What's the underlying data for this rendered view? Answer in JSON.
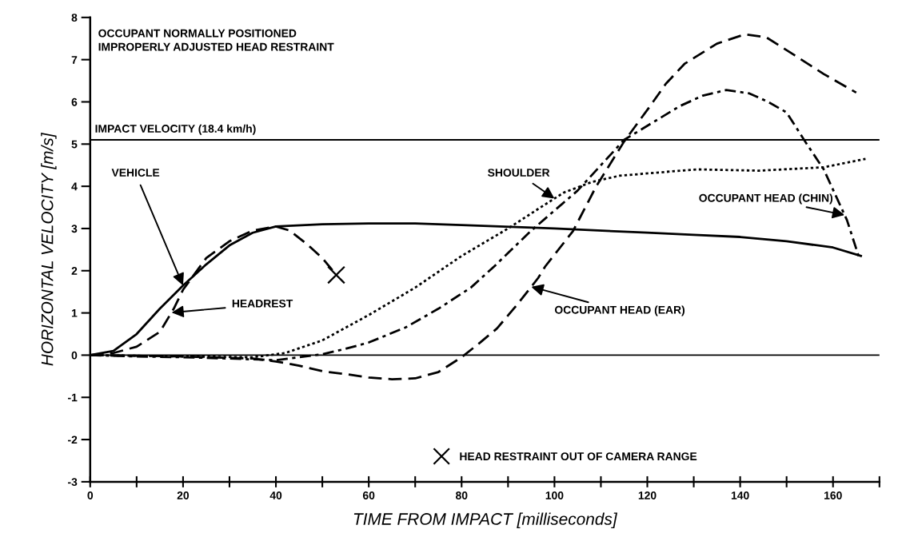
{
  "chart_data": {
    "type": "line",
    "xlabel": "TIME FROM IMPACT [milliseconds]",
    "ylabel": "HORIZONTAL VELOCITY [m/s]",
    "xlim": [
      0,
      170
    ],
    "xticks": [
      0,
      {
        "value": 10,
        "label": null
      },
      20,
      {
        "value": 30,
        "label": null
      },
      40,
      {
        "value": 50,
        "label": null
      },
      60,
      {
        "value": 70,
        "label": null
      },
      80,
      {
        "value": 90,
        "label": null
      },
      100,
      {
        "value": 110,
        "label": null
      },
      120,
      {
        "value": 130,
        "label": null
      },
      140,
      {
        "value": 150,
        "label": null
      },
      160,
      {
        "value": 170,
        "label": null
      }
    ],
    "ylim": [
      -3,
      8
    ],
    "yticks": [
      -3,
      -2,
      -1,
      0,
      1,
      2,
      3,
      4,
      5,
      6,
      7,
      8
    ],
    "grid": false,
    "legend": "bottom",
    "series": [
      {
        "name": "VEHICLE",
        "color": "#000000",
        "line_style": "solid",
        "x": [
          0,
          5,
          10,
          15,
          20,
          25,
          30,
          35,
          40,
          50,
          60,
          70,
          80,
          100,
          120,
          130,
          140,
          150,
          160,
          166
        ],
        "values": [
          0,
          0.1,
          0.5,
          1.1,
          1.65,
          2.15,
          2.6,
          2.9,
          3.05,
          3.1,
          3.12,
          3.12,
          3.08,
          3.0,
          2.9,
          2.85,
          2.8,
          2.7,
          2.55,
          2.35
        ]
      },
      {
        "name": "HEADREST",
        "color": "#000000",
        "line_style": "dashed",
        "x": [
          0,
          5,
          10,
          15,
          18,
          20,
          25,
          30,
          35,
          40,
          43,
          47,
          50,
          53
        ],
        "values": [
          0,
          0.05,
          0.2,
          0.55,
          1.1,
          1.55,
          2.3,
          2.7,
          2.95,
          3.05,
          2.95,
          2.6,
          2.3,
          1.9
        ]
      },
      {
        "name": "SHOULDER",
        "color": "#000000",
        "line_style": "dotted",
        "x": [
          0,
          20,
          35,
          42,
          50,
          55,
          60,
          70,
          80,
          90,
          97,
          102,
          108,
          114,
          125,
          131,
          144,
          158,
          167
        ],
        "values": [
          0,
          -0.03,
          -0.05,
          0.05,
          0.35,
          0.65,
          0.95,
          1.6,
          2.35,
          3.0,
          3.5,
          3.85,
          4.1,
          4.25,
          4.35,
          4.4,
          4.37,
          4.45,
          4.65
        ]
      },
      {
        "name": "OCCUPANT HEAD (EAR)",
        "color": "#000000",
        "line_style": "dashed",
        "x": [
          0,
          20,
          35,
          40,
          45,
          50,
          55,
          60,
          65,
          70,
          75,
          80,
          84,
          87.6,
          92,
          96.5,
          98,
          104,
          109,
          115,
          120.6,
          124,
          128,
          135,
          141,
          145.6,
          151.8,
          158,
          165
        ],
        "values": [
          0,
          -0.03,
          -0.08,
          -0.15,
          -0.25,
          -0.38,
          -0.45,
          -0.53,
          -0.57,
          -0.55,
          -0.4,
          -0.05,
          0.3,
          0.63,
          1.2,
          1.83,
          2.1,
          2.94,
          4.0,
          5.06,
          5.9,
          6.43,
          6.9,
          7.38,
          7.6,
          7.53,
          7.1,
          6.66,
          6.22
        ]
      },
      {
        "name": "OCCUPANT HEAD (CHIN)",
        "color": "#000000",
        "line_style": "dashdot",
        "x": [
          0,
          10,
          20,
          30,
          40,
          45,
          50,
          55,
          60,
          68,
          75,
          82,
          87,
          95,
          105,
          115,
          121,
          127,
          132,
          137,
          142,
          146,
          150,
          154,
          158,
          163,
          165.5
        ],
        "values": [
          0,
          -0.03,
          -0.05,
          -0.08,
          -0.12,
          -0.05,
          0.02,
          0.15,
          0.3,
          0.66,
          1.1,
          1.6,
          2.1,
          2.95,
          3.9,
          5.1,
          5.5,
          5.9,
          6.15,
          6.28,
          6.2,
          6.0,
          5.75,
          5.06,
          4.4,
          3.2,
          2.35
        ]
      },
      {
        "name": "HEAD RESTRAINT OUT OF CAMERA RANGE",
        "type": "scatter",
        "marker": "cross",
        "color": "#000000",
        "x": [
          53
        ],
        "values": [
          1.9
        ]
      }
    ],
    "ref_lines": [
      {
        "axis": "y",
        "value": 5.1,
        "label": "IMPACT VELOCITY (18.4 km/h)"
      },
      {
        "axis": "y",
        "value": 0
      }
    ],
    "annotations": [
      "OCCUPANT NORMALLY POSITIONED\nIMPROPERLY ADJUSTED HEAD RESTRAINT"
    ]
  }
}
